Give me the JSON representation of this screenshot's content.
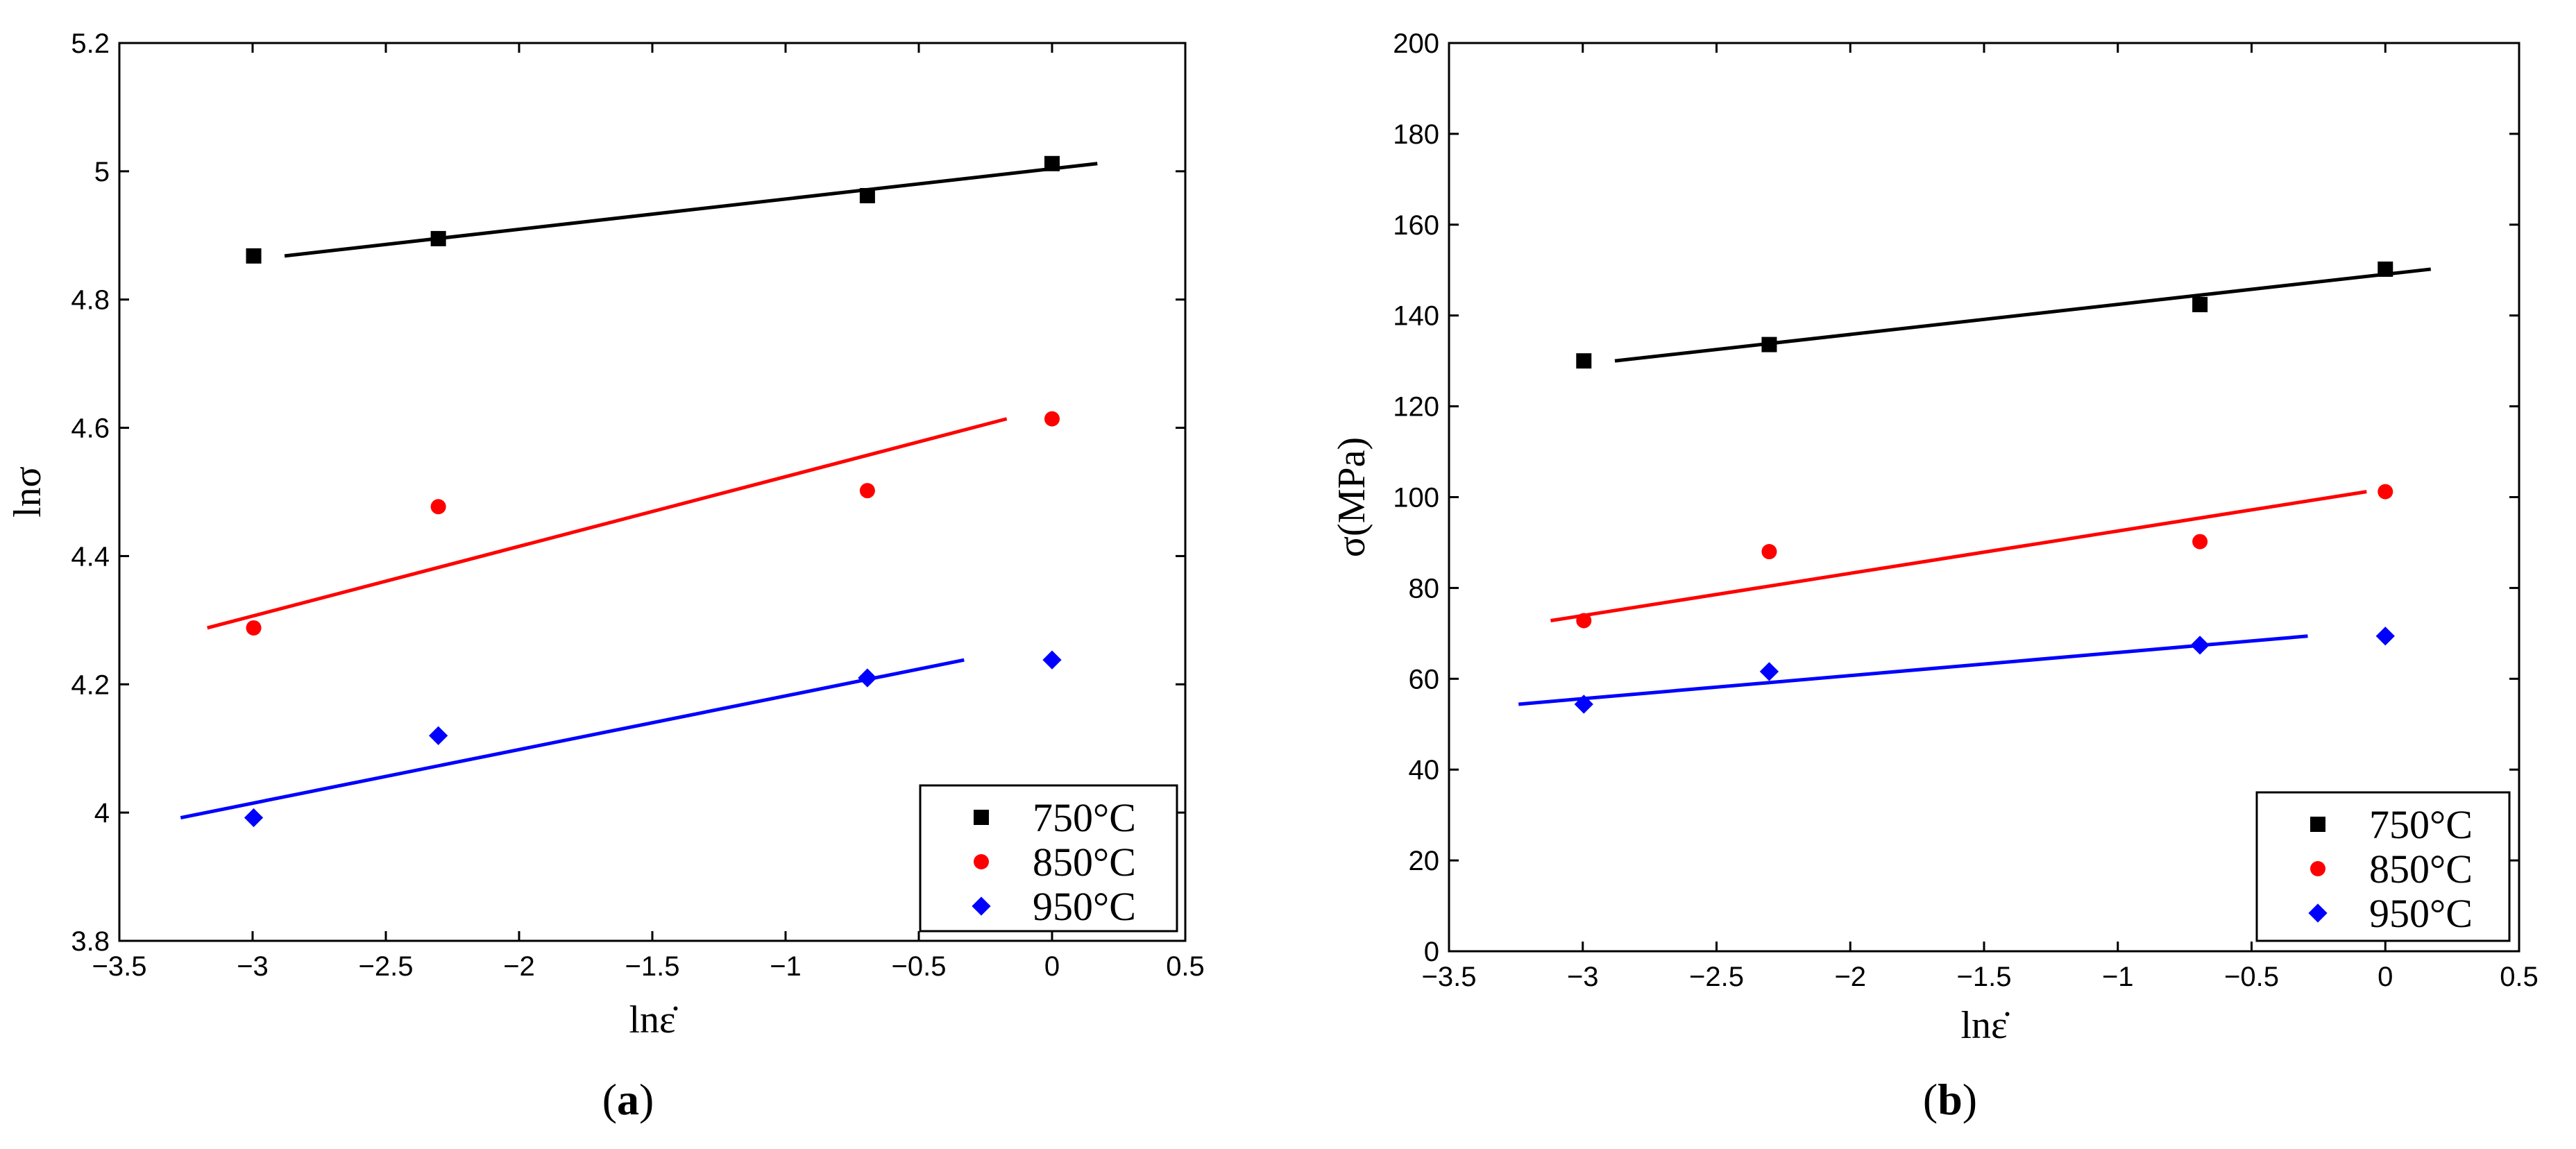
{
  "chart_data": [
    {
      "type": "scatter",
      "caption_letter": "a",
      "xlabel": "lnε̇",
      "ylabel": "lnσ",
      "xlim": [
        -3.5,
        0.5
      ],
      "ylim": [
        3.8,
        5.2
      ],
      "xticks": [
        "−3.5",
        "−3",
        "−2.5",
        "−2",
        "−1.5",
        "−1",
        "−0.5",
        "0",
        "0.5"
      ],
      "yticks": [
        "3.8",
        "4",
        "4.2",
        "4.4",
        "4.6",
        "4.8",
        "5",
        "5.2"
      ],
      "xtick_values": [
        -3.5,
        -3,
        -2.5,
        -2,
        -1.5,
        -1,
        -0.5,
        0,
        0.5
      ],
      "ytick_values": [
        3.8,
        4.0,
        4.2,
        4.4,
        4.6,
        4.8,
        5.0,
        5.2
      ],
      "legend_position": "bottom-right",
      "series": [
        {
          "name": "750°C",
          "color": "#000000",
          "marker": "square",
          "x": [
            -2.996,
            -2.303,
            -0.693,
            0.0
          ],
          "y": [
            4.868,
            4.895,
            4.962,
            5.012
          ],
          "fit_x": [
            -2.88,
            0.17
          ],
          "fit_y": [
            4.868,
            5.012
          ]
        },
        {
          "name": "850°C",
          "color": "#ff0000",
          "marker": "circle",
          "x": [
            -2.996,
            -2.303,
            -0.693,
            0.0
          ],
          "y": [
            4.288,
            4.477,
            4.502,
            4.614
          ],
          "fit_x": [
            -3.17,
            -0.17
          ],
          "fit_y": [
            4.288,
            4.614
          ]
        },
        {
          "name": "950°C",
          "color": "#0000ff",
          "marker": "diamond",
          "x": [
            -2.996,
            -2.303,
            -0.693,
            0.0
          ],
          "y": [
            3.992,
            4.12,
            4.21,
            4.238
          ],
          "fit_x": [
            -3.27,
            -0.33
          ],
          "fit_y": [
            3.992,
            4.238
          ]
        }
      ]
    },
    {
      "type": "scatter",
      "caption_letter": "b",
      "xlabel": "lnε̇",
      "ylabel": "σ(MPa)",
      "xlim": [
        -3.5,
        0.5
      ],
      "ylim": [
        0,
        200
      ],
      "xticks": [
        "−3.5",
        "−3",
        "−2.5",
        "−2",
        "−1.5",
        "−1",
        "−0.5",
        "0",
        "0.5"
      ],
      "yticks": [
        "0",
        "20",
        "40",
        "60",
        "80",
        "100",
        "120",
        "140",
        "160",
        "180",
        "200"
      ],
      "xtick_values": [
        -3.5,
        -3,
        -2.5,
        -2,
        -1.5,
        -1,
        -0.5,
        0,
        0.5
      ],
      "ytick_values": [
        0,
        20,
        40,
        60,
        80,
        100,
        120,
        140,
        160,
        180,
        200
      ],
      "legend_position": "bottom-right",
      "series": [
        {
          "name": "750°C",
          "color": "#000000",
          "marker": "square",
          "x": [
            -2.996,
            -2.303,
            -0.693,
            0.0
          ],
          "y": [
            130,
            133.6,
            142.4,
            150.2
          ],
          "fit_x": [
            -2.88,
            0.17
          ],
          "fit_y": [
            130,
            150.2
          ]
        },
        {
          "name": "850°C",
          "color": "#ff0000",
          "marker": "circle",
          "x": [
            -2.996,
            -2.303,
            -0.693,
            0.0
          ],
          "y": [
            72.8,
            88,
            90.2,
            101.2
          ],
          "fit_x": [
            -3.12,
            -0.07
          ],
          "fit_y": [
            72.8,
            101.2
          ]
        },
        {
          "name": "950°C",
          "color": "#0000ff",
          "marker": "diamond",
          "x": [
            -2.996,
            -2.303,
            -0.693,
            0.0
          ],
          "y": [
            54.4,
            61.6,
            67.4,
            69.4
          ],
          "fit_x": [
            -3.24,
            -0.29
          ],
          "fit_y": [
            54.4,
            69.4
          ]
        }
      ]
    }
  ]
}
